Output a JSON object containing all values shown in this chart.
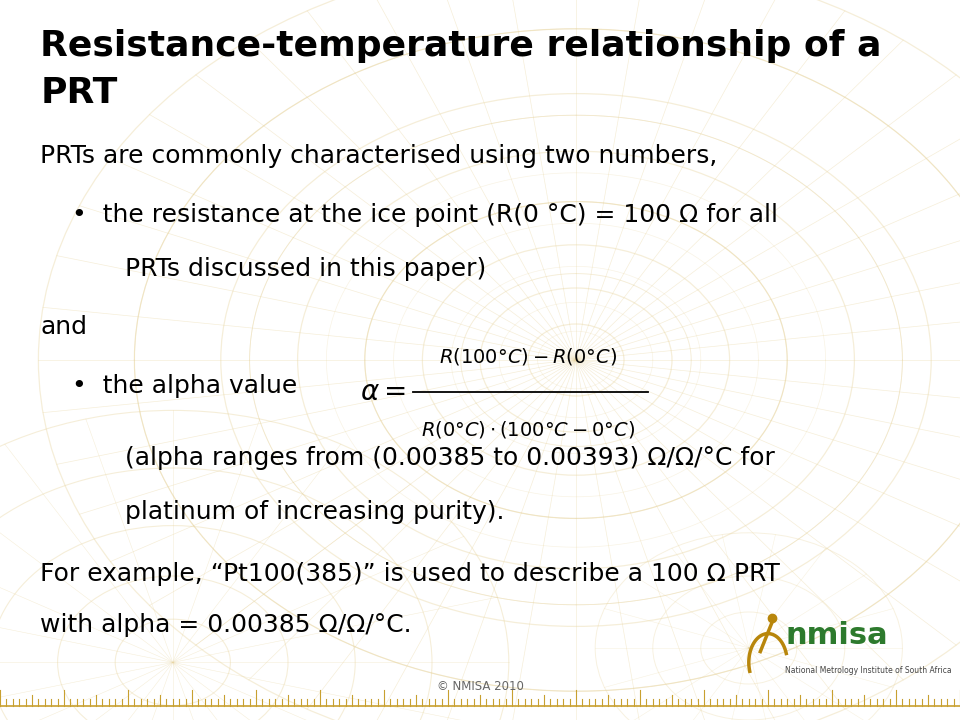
{
  "title_line1": "Resistance-temperature relationship of a",
  "title_line2": "PRT",
  "bg_color": "#FFFFFF",
  "title_color": "#000000",
  "body_color": "#000000",
  "title_fontsize": 26,
  "body_fontsize": 18,
  "footer_text": "© NMISA 2010",
  "nmisa_green": "#2D7A2D",
  "nmisa_gold": "#B8860B",
  "watermark_color": "#E8D5A0",
  "watermark_alpha": 0.4
}
